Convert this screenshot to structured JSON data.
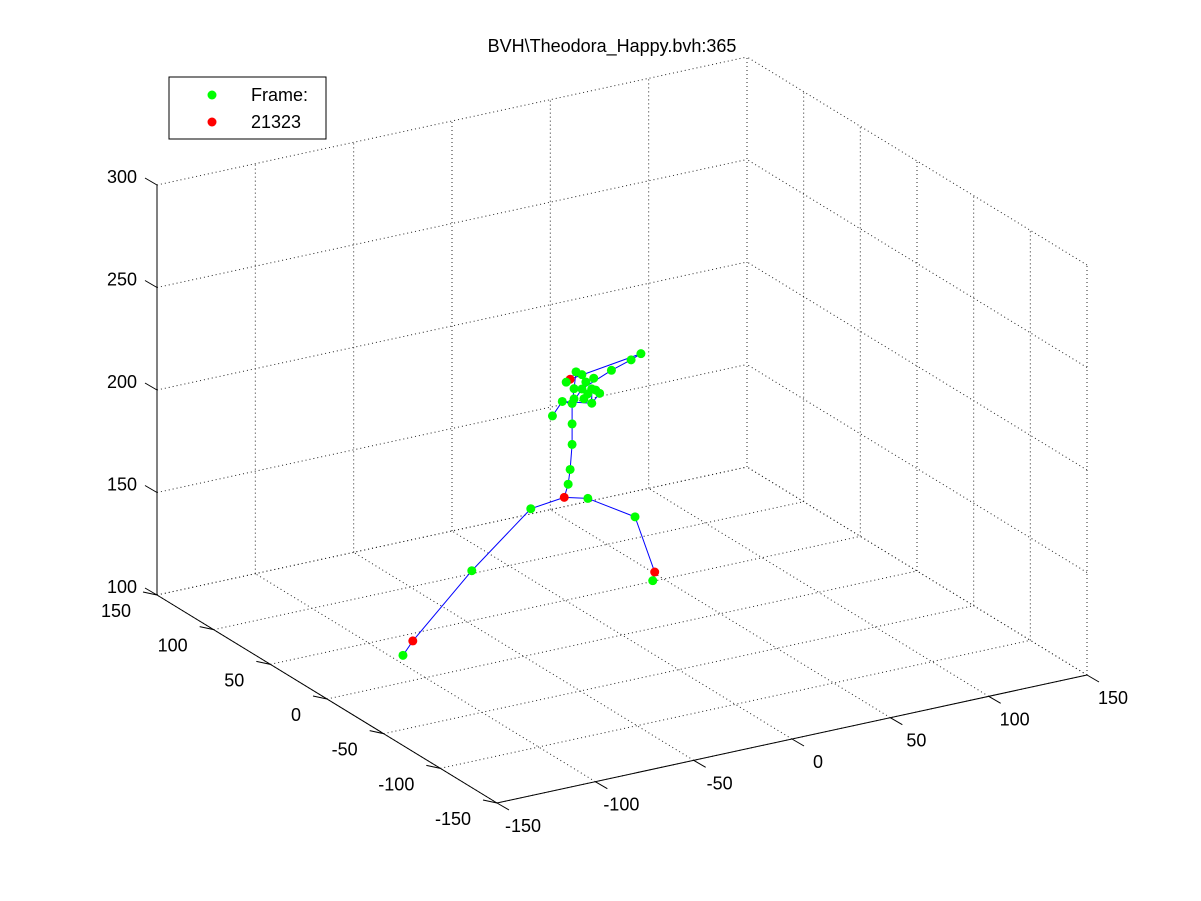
{
  "chart_data": {
    "type": "scatter",
    "title": "BVH\\Theodora_Happy.bvh:365",
    "xlabel": "",
    "ylabel": "",
    "zlabel": "",
    "xlim": [
      -150,
      150
    ],
    "ylim": [
      -150,
      150
    ],
    "zlim": [
      100,
      300
    ],
    "x_ticks": [
      "-150",
      "-100",
      "-50",
      "0",
      "50",
      "100",
      "150"
    ],
    "y_ticks": [
      "-150",
      "-100",
      "-50",
      "0",
      "50",
      "100",
      "150"
    ],
    "z_ticks": [
      "100",
      "150",
      "200",
      "250",
      "300"
    ],
    "grid": true,
    "legend_position": "top-left",
    "legend": [
      {
        "label": "Frame:",
        "color": "#00ff00"
      },
      {
        "label": "21323",
        "color": "#ff0000"
      }
    ],
    "colors": {
      "joint": "#00ff00",
      "end_site": "#ff0000",
      "bone": "#0000ff"
    },
    "joints": [
      {
        "id": "hips",
        "x": -19,
        "y": 18,
        "z": 165,
        "kind": "end"
      },
      {
        "id": "spine1",
        "x": -17,
        "y": 18,
        "z": 171,
        "kind": "joint"
      },
      {
        "id": "spine2",
        "x": -16,
        "y": 18,
        "z": 178,
        "kind": "joint"
      },
      {
        "id": "spine3",
        "x": -15,
        "y": 18,
        "z": 190,
        "kind": "joint"
      },
      {
        "id": "chest",
        "x": -15,
        "y": 18,
        "z": 200,
        "kind": "joint"
      },
      {
        "id": "neck",
        "x": -15,
        "y": 18,
        "z": 210,
        "kind": "joint"
      },
      {
        "id": "head",
        "x": -14,
        "y": 18,
        "z": 217,
        "kind": "joint"
      },
      {
        "id": "headtop",
        "x": -13,
        "y": 18,
        "z": 225,
        "kind": "joint"
      },
      {
        "id": "head_end",
        "x": -16,
        "y": 18,
        "z": 222,
        "kind": "end"
      },
      {
        "id": "lshoulder",
        "x": -10,
        "y": 18,
        "z": 216,
        "kind": "joint"
      },
      {
        "id": "lelbow",
        "x": 5,
        "y": 18,
        "z": 222,
        "kind": "joint"
      },
      {
        "id": "lwrist",
        "x": 15,
        "y": 18,
        "z": 225,
        "kind": "joint"
      },
      {
        "id": "lhand",
        "x": 20,
        "y": 18,
        "z": 227,
        "kind": "joint"
      },
      {
        "id": "rshoulder",
        "x": -20,
        "y": 18,
        "z": 212,
        "kind": "joint"
      },
      {
        "id": "relbow",
        "x": -25,
        "y": 18,
        "z": 206,
        "kind": "joint"
      },
      {
        "id": "rwrist",
        "x": -5,
        "y": 18,
        "z": 208,
        "kind": "joint"
      },
      {
        "id": "finger1",
        "x": -9,
        "y": 18,
        "z": 211,
        "kind": "joint"
      },
      {
        "id": "finger2",
        "x": -7,
        "y": 18,
        "z": 213,
        "kind": "joint"
      },
      {
        "id": "finger3",
        "x": -5,
        "y": 18,
        "z": 215,
        "kind": "joint"
      },
      {
        "id": "finger4",
        "x": -3,
        "y": 18,
        "z": 214,
        "kind": "joint"
      },
      {
        "id": "finger5",
        "x": -1,
        "y": 18,
        "z": 212,
        "kind": "joint"
      },
      {
        "id": "finger6",
        "x": -8,
        "y": 18,
        "z": 219,
        "kind": "joint"
      },
      {
        "id": "finger7",
        "x": -4,
        "y": 18,
        "z": 220,
        "kind": "joint"
      },
      {
        "id": "finger8",
        "x": -18,
        "y": 18,
        "z": 221,
        "kind": "joint"
      },
      {
        "id": "finger9",
        "x": -10,
        "y": 18,
        "z": 223,
        "kind": "joint"
      },
      {
        "id": "finger10",
        "x": -14,
        "y": 18,
        "z": 212,
        "kind": "joint"
      },
      {
        "id": "rhip",
        "x": -36,
        "y": 18,
        "z": 163,
        "kind": "joint"
      },
      {
        "id": "rknee",
        "x": -66,
        "y": 18,
        "z": 139,
        "kind": "joint"
      },
      {
        "id": "rankle",
        "x": -96,
        "y": 18,
        "z": 111,
        "kind": "end"
      },
      {
        "id": "rtoe",
        "x": -101,
        "y": 18,
        "z": 105,
        "kind": "joint"
      },
      {
        "id": "lhip",
        "x": -7,
        "y": 18,
        "z": 162,
        "kind": "joint"
      },
      {
        "id": "lknee",
        "x": 17,
        "y": 18,
        "z": 148,
        "kind": "joint"
      },
      {
        "id": "lankle",
        "x": 27,
        "y": 18,
        "z": 119,
        "kind": "end"
      },
      {
        "id": "ltoe",
        "x": 26,
        "y": 18,
        "z": 115,
        "kind": "joint"
      }
    ],
    "bones": [
      [
        "hips",
        "spine1"
      ],
      [
        "spine1",
        "spine2"
      ],
      [
        "spine2",
        "spine3"
      ],
      [
        "spine3",
        "chest"
      ],
      [
        "chest",
        "neck"
      ],
      [
        "neck",
        "head"
      ],
      [
        "head",
        "headtop"
      ],
      [
        "headtop",
        "head_end"
      ],
      [
        "neck",
        "lshoulder"
      ],
      [
        "lshoulder",
        "lelbow"
      ],
      [
        "lelbow",
        "lwrist"
      ],
      [
        "lwrist",
        "lhand"
      ],
      [
        "head_end",
        "lhand"
      ],
      [
        "neck",
        "rshoulder"
      ],
      [
        "rshoulder",
        "relbow"
      ],
      [
        "rshoulder",
        "rwrist"
      ],
      [
        "rwrist",
        "finger1"
      ],
      [
        "rwrist",
        "finger3"
      ],
      [
        "rwrist",
        "finger5"
      ],
      [
        "hips",
        "rhip"
      ],
      [
        "rhip",
        "rknee"
      ],
      [
        "rknee",
        "rankle"
      ],
      [
        "rankle",
        "rtoe"
      ],
      [
        "hips",
        "lhip"
      ],
      [
        "lhip",
        "lknee"
      ],
      [
        "lknee",
        "lankle"
      ],
      [
        "lankle",
        "ltoe"
      ]
    ]
  }
}
